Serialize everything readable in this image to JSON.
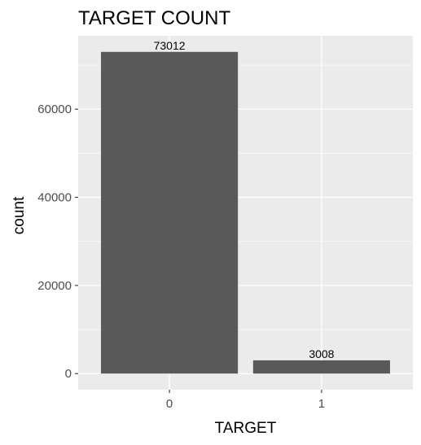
{
  "chart_data": {
    "type": "bar",
    "title": "TARGET COUNT",
    "xlabel": "TARGET",
    "ylabel": "count",
    "categories": [
      "0",
      "1"
    ],
    "values": [
      73012,
      3008
    ],
    "data_labels": [
      "73012",
      "3008"
    ],
    "yticks": [
      0,
      20000,
      40000,
      60000
    ],
    "ytick_labels": [
      "0",
      "20000",
      "40000",
      "60000"
    ],
    "ylim": [
      -3650.6,
      76662.6
    ],
    "grid": true,
    "legend": "none",
    "colors": {
      "panel_background": "#ebebeb",
      "grid_line": "#ffffff",
      "bar_fill": "#595959",
      "tick_mark": "#333333",
      "tick_label": "#4d4d4d",
      "text": "#000000"
    }
  }
}
